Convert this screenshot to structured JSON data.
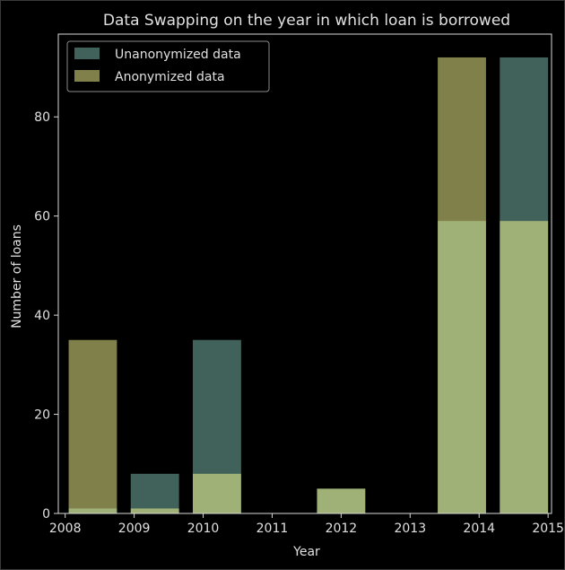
{
  "chart_data": {
    "type": "bar",
    "title": "Data Swapping on the year in which loan is borrowed",
    "xlabel": "Year",
    "ylabel": "Number of loans",
    "xlim": [
      2007.9,
      2015.05
    ],
    "ylim": [
      0,
      96.7
    ],
    "xticks": [
      2008,
      2009,
      2010,
      2011,
      2012,
      2013,
      2014,
      2015
    ],
    "yticks": [
      0,
      20,
      40,
      60,
      80
    ],
    "bar_width": 0.7,
    "x": [
      2008.4,
      2009.3,
      2010.2,
      2012.0,
      2013.75,
      2014.65
    ],
    "series": [
      {
        "name": "Unanonymized data",
        "color": "#7fc3b3",
        "alpha": 0.5,
        "values": [
          1,
          8,
          35,
          5,
          59,
          92
        ]
      },
      {
        "name": "Anonymized data",
        "color": "#ffff94",
        "alpha": 0.5,
        "values": [
          35,
          1,
          8,
          5,
          92,
          59
        ]
      }
    ],
    "legend_position": "top-left",
    "grid": false
  },
  "colors": {
    "background": "#000000",
    "axes": "#d8d8d8",
    "text": "#e0e0e0"
  }
}
